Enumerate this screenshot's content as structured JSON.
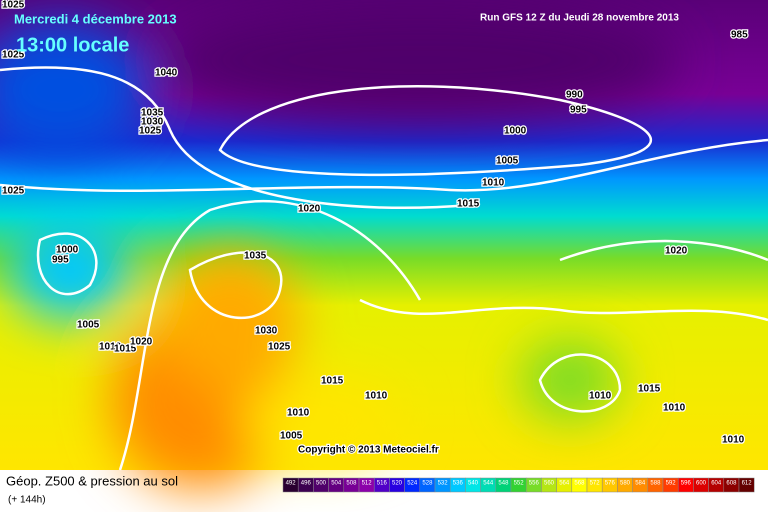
{
  "header": {
    "date": "Mercredi 4 décembre 2013",
    "time": "13:00 locale",
    "run": "Run GFS 12 Z du Jeudi 28 novembre 2013"
  },
  "isobar_labels": [
    1025,
    1025,
    1040,
    1035,
    1030,
    1025,
    1025,
    1000,
    995,
    1005,
    1010,
    1015,
    1020,
    1035,
    1030,
    1025,
    1015,
    1010,
    1010,
    1005,
    1020,
    1015,
    1010,
    1005,
    1000,
    990,
    995,
    985,
    1020,
    1010,
    1015,
    1010,
    1010
  ],
  "copyright": "Copyright © 2013 Meteociel.fr",
  "footer": {
    "title": "Géop. Z500 & pression au sol",
    "subtitle": "(+ 144h)"
  },
  "legend": {
    "values": [
      492,
      496,
      500,
      504,
      508,
      512,
      516,
      520,
      524,
      528,
      532,
      536,
      540,
      544,
      548,
      552,
      556,
      560,
      564,
      568,
      572,
      576,
      580,
      584,
      588,
      592,
      596,
      600,
      604,
      608,
      612
    ],
    "colors": [
      "#2a0030",
      "#3c0050",
      "#50006a",
      "#640080",
      "#780096",
      "#8c00aa",
      "#5000c8",
      "#2800e0",
      "#0028ff",
      "#0064ff",
      "#0096ff",
      "#00c8ff",
      "#00e6e6",
      "#00dcb4",
      "#00d278",
      "#32d232",
      "#78dc28",
      "#b4e614",
      "#e6f000",
      "#ffff00",
      "#ffe600",
      "#ffc800",
      "#ffaa00",
      "#ff8c00",
      "#ff6400",
      "#ff3c00",
      "#ff0000",
      "#dc0000",
      "#b40000",
      "#8c0000",
      "#640000"
    ]
  }
}
